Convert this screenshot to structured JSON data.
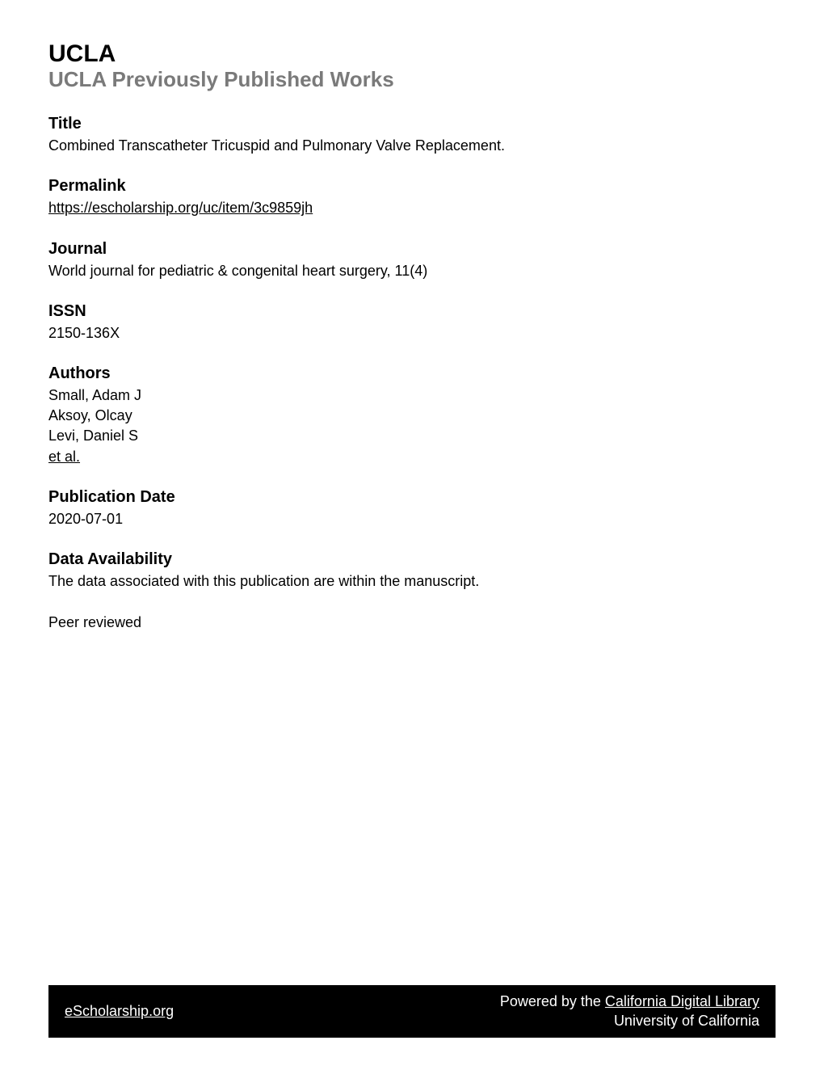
{
  "header": {
    "institution": "UCLA",
    "subtitle": "UCLA Previously Published Works"
  },
  "sections": {
    "title": {
      "heading": "Title",
      "text": "Combined Transcatheter Tricuspid and Pulmonary Valve Replacement."
    },
    "permalink": {
      "heading": "Permalink",
      "url": "https://escholarship.org/uc/item/3c9859jh"
    },
    "journal": {
      "heading": "Journal",
      "text": "World journal for pediatric & congenital heart surgery, 11(4)"
    },
    "issn": {
      "heading": "ISSN",
      "text": "2150-136X"
    },
    "authors": {
      "heading": "Authors",
      "list": [
        "Small, Adam J",
        "Aksoy, Olcay",
        "Levi, Daniel S"
      ],
      "etAl": "et al."
    },
    "publicationDate": {
      "heading": "Publication Date",
      "text": "2020-07-01"
    },
    "dataAvailability": {
      "heading": "Data Availability",
      "text": "The data associated with this publication are within the manuscript."
    },
    "peerReviewed": {
      "text": "Peer reviewed"
    }
  },
  "footer": {
    "leftLink": "eScholarship.org",
    "rightPrefix": "Powered by the ",
    "rightLink": "California Digital Library",
    "rightBottom": "University of California"
  },
  "styles": {
    "backgroundColor": "#ffffff",
    "textColor": "#000000",
    "subtitleColor": "#7a7a7a",
    "footerBg": "#000000",
    "footerText": "#ffffff",
    "institutionFontSize": 30,
    "subtitleFontSize": 26,
    "headingFontSize": 20,
    "bodyFontSize": 18
  }
}
